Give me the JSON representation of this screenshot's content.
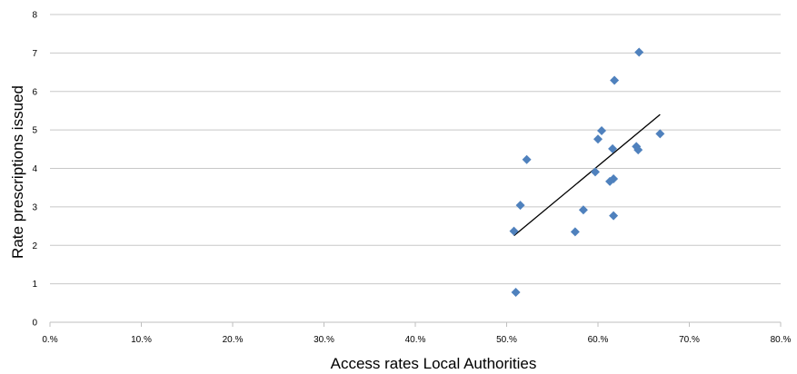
{
  "chart_data": {
    "type": "scatter",
    "xlabel": "Access rates Local Authorities",
    "ylabel": "Rate prescriptions issued",
    "xlim": [
      0,
      0.8
    ],
    "ylim": [
      0,
      8
    ],
    "x_ticks": [
      0,
      0.1,
      0.2,
      0.3,
      0.4,
      0.5,
      0.6,
      0.7,
      0.8
    ],
    "x_tick_labels": [
      "0.%",
      "10.%",
      "20.%",
      "30.%",
      "40.%",
      "50.%",
      "60.%",
      "70.%",
      "80.%"
    ],
    "y_ticks": [
      0,
      1,
      2,
      3,
      4,
      5,
      6,
      7,
      8
    ],
    "y_tick_labels": [
      "0",
      "1",
      "2",
      "3",
      "4",
      "5",
      "6",
      "7",
      "8"
    ],
    "grid": "horizontal",
    "marker": "diamond",
    "marker_color": "#4f81bd",
    "trendline": {
      "x": [
        0.508,
        0.668
      ],
      "y": [
        2.25,
        5.4
      ],
      "color": "#000000"
    },
    "points": [
      {
        "x": 0.508,
        "y": 2.37
      },
      {
        "x": 0.51,
        "y": 0.78
      },
      {
        "x": 0.515,
        "y": 3.04
      },
      {
        "x": 0.522,
        "y": 4.23
      },
      {
        "x": 0.575,
        "y": 2.35
      },
      {
        "x": 0.584,
        "y": 2.92
      },
      {
        "x": 0.597,
        "y": 3.91
      },
      {
        "x": 0.6,
        "y": 4.76
      },
      {
        "x": 0.604,
        "y": 4.98
      },
      {
        "x": 0.613,
        "y": 3.66
      },
      {
        "x": 0.617,
        "y": 3.73
      },
      {
        "x": 0.616,
        "y": 4.51
      },
      {
        "x": 0.617,
        "y": 2.77
      },
      {
        "x": 0.618,
        "y": 6.29
      },
      {
        "x": 0.642,
        "y": 4.57
      },
      {
        "x": 0.644,
        "y": 4.48
      },
      {
        "x": 0.645,
        "y": 7.02
      },
      {
        "x": 0.668,
        "y": 4.9
      }
    ]
  }
}
